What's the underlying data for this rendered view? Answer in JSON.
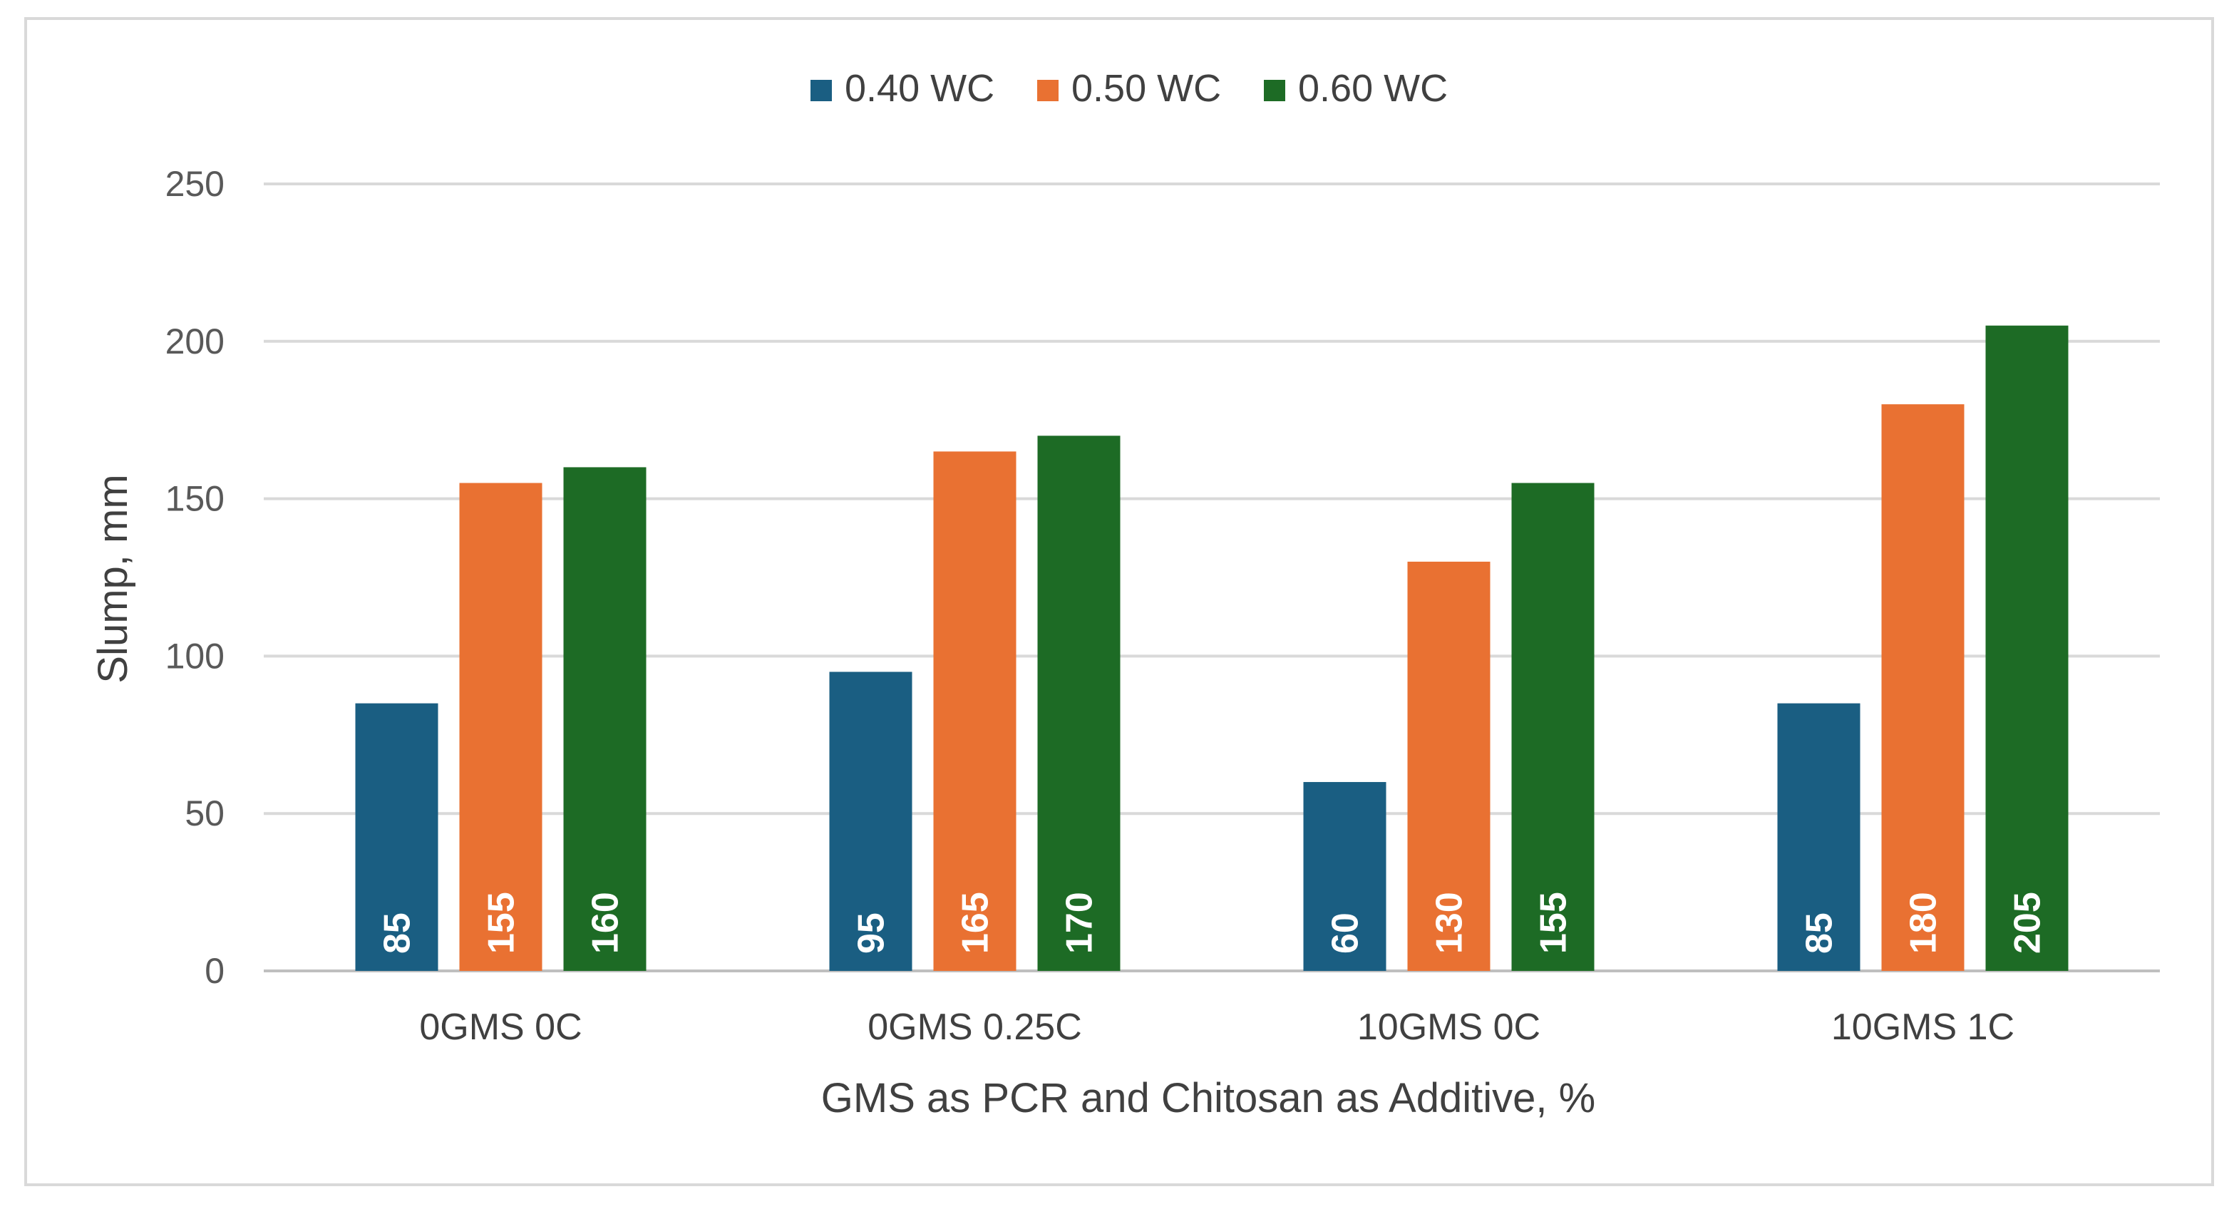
{
  "chart_data": {
    "type": "bar",
    "title": "",
    "xlabel": "GMS as PCR and Chitosan as Additive, %",
    "ylabel": "Slump, mm",
    "ylim": [
      0,
      250
    ],
    "yticks": [
      0,
      50,
      100,
      150,
      200,
      250
    ],
    "categories": [
      "0GMS 0C",
      "0GMS 0.25C",
      "10GMS 0C",
      "10GMS 1C"
    ],
    "series": [
      {
        "name": "0.40 WC",
        "color": "#1a5e82",
        "values": [
          85,
          95,
          60,
          85
        ]
      },
      {
        "name": "0.50 WC",
        "color": "#e97132",
        "values": [
          155,
          165,
          130,
          180
        ]
      },
      {
        "name": "0.60 WC",
        "color": "#1d6b25",
        "values": [
          160,
          170,
          155,
          205
        ]
      }
    ],
    "legend_position": "top-center",
    "grid": true,
    "data_labels": "inside-base-rotated"
  },
  "colors": {
    "gridline": "#d9d9d9",
    "axis_line": "#bfbfbf"
  }
}
